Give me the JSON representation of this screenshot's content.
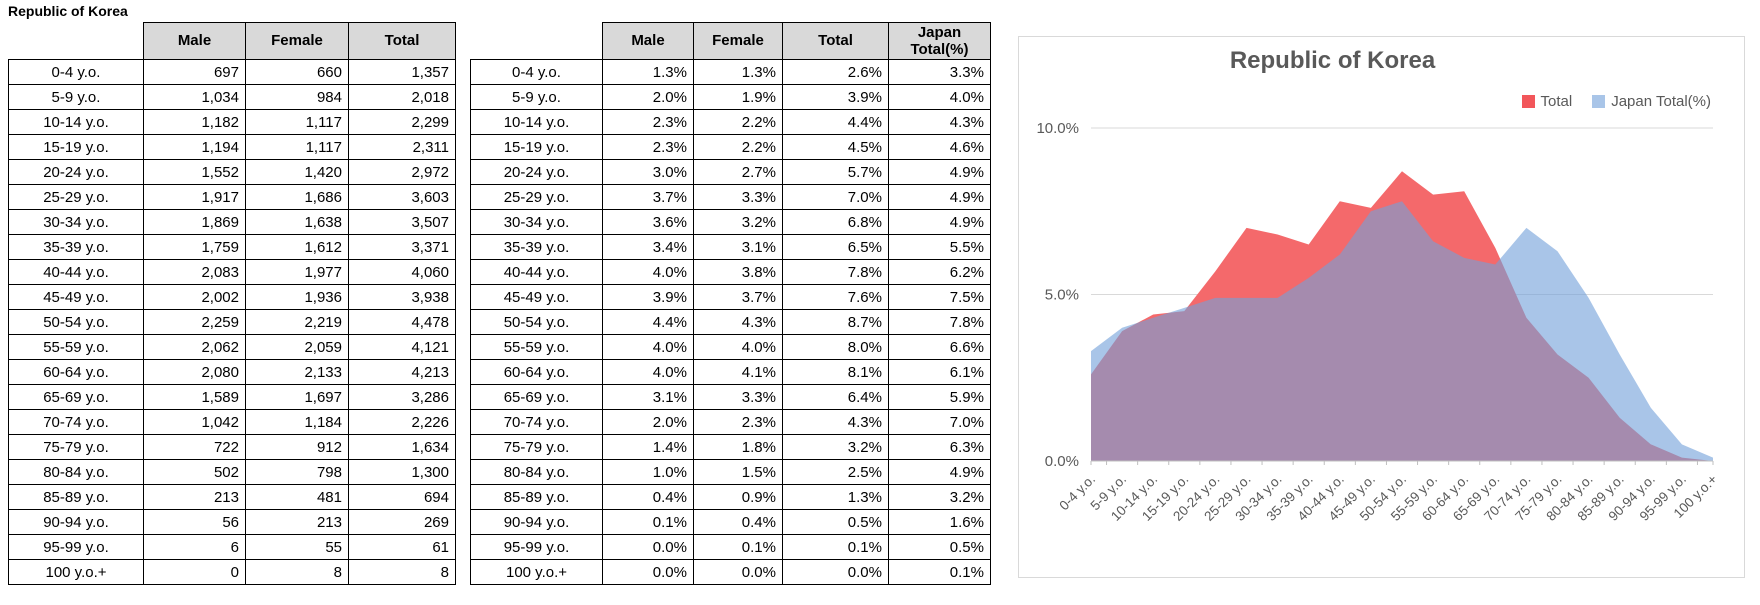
{
  "page_title": "Republic of Korea",
  "age_groups": [
    "0-4 y.o.",
    "5-9 y.o.",
    "10-14 y.o.",
    "15-19 y.o.",
    "20-24 y.o.",
    "25-29 y.o.",
    "30-34 y.o.",
    "35-39 y.o.",
    "40-44 y.o.",
    "45-49 y.o.",
    "50-54 y.o.",
    "55-59 y.o.",
    "60-64 y.o.",
    "65-69 y.o.",
    "70-74 y.o.",
    "75-79 y.o.",
    "80-84 y.o.",
    "85-89 y.o.",
    "90-94 y.o.",
    "95-99 y.o.",
    "100 y.o.+"
  ],
  "counts_table": {
    "headers": [
      "Male",
      "Female",
      "Total"
    ],
    "rows": [
      [
        "697",
        "660",
        "1,357"
      ],
      [
        "1,034",
        "984",
        "2,018"
      ],
      [
        "1,182",
        "1,117",
        "2,299"
      ],
      [
        "1,194",
        "1,117",
        "2,311"
      ],
      [
        "1,552",
        "1,420",
        "2,972"
      ],
      [
        "1,917",
        "1,686",
        "3,603"
      ],
      [
        "1,869",
        "1,638",
        "3,507"
      ],
      [
        "1,759",
        "1,612",
        "3,371"
      ],
      [
        "2,083",
        "1,977",
        "4,060"
      ],
      [
        "2,002",
        "1,936",
        "3,938"
      ],
      [
        "2,259",
        "2,219",
        "4,478"
      ],
      [
        "2,062",
        "2,059",
        "4,121"
      ],
      [
        "2,080",
        "2,133",
        "4,213"
      ],
      [
        "1,589",
        "1,697",
        "3,286"
      ],
      [
        "1,042",
        "1,184",
        "2,226"
      ],
      [
        "722",
        "912",
        "1,634"
      ],
      [
        "502",
        "798",
        "1,300"
      ],
      [
        "213",
        "481",
        "694"
      ],
      [
        "56",
        "213",
        "269"
      ],
      [
        "6",
        "55",
        "61"
      ],
      [
        "0",
        "8",
        "8"
      ]
    ]
  },
  "percent_table": {
    "headers": [
      "Male",
      "Female",
      "Total",
      "Japan\nTotal(%)"
    ],
    "rows": [
      [
        "1.3%",
        "1.3%",
        "2.6%",
        "3.3%"
      ],
      [
        "2.0%",
        "1.9%",
        "3.9%",
        "4.0%"
      ],
      [
        "2.3%",
        "2.2%",
        "4.4%",
        "4.3%"
      ],
      [
        "2.3%",
        "2.2%",
        "4.5%",
        "4.6%"
      ],
      [
        "3.0%",
        "2.7%",
        "5.7%",
        "4.9%"
      ],
      [
        "3.7%",
        "3.3%",
        "7.0%",
        "4.9%"
      ],
      [
        "3.6%",
        "3.2%",
        "6.8%",
        "4.9%"
      ],
      [
        "3.4%",
        "3.1%",
        "6.5%",
        "5.5%"
      ],
      [
        "4.0%",
        "3.8%",
        "7.8%",
        "6.2%"
      ],
      [
        "3.9%",
        "3.7%",
        "7.6%",
        "7.5%"
      ],
      [
        "4.4%",
        "4.3%",
        "8.7%",
        "7.8%"
      ],
      [
        "4.0%",
        "4.0%",
        "8.0%",
        "6.6%"
      ],
      [
        "4.0%",
        "4.1%",
        "8.1%",
        "6.1%"
      ],
      [
        "3.1%",
        "3.3%",
        "6.4%",
        "5.9%"
      ],
      [
        "2.0%",
        "2.3%",
        "4.3%",
        "7.0%"
      ],
      [
        "1.4%",
        "1.8%",
        "3.2%",
        "6.3%"
      ],
      [
        "1.0%",
        "1.5%",
        "2.5%",
        "4.9%"
      ],
      [
        "0.4%",
        "0.9%",
        "1.3%",
        "3.2%"
      ],
      [
        "0.1%",
        "0.4%",
        "0.5%",
        "1.6%"
      ],
      [
        "0.0%",
        "0.1%",
        "0.1%",
        "0.5%"
      ],
      [
        "0.0%",
        "0.0%",
        "0.0%",
        "0.1%"
      ]
    ]
  },
  "chart_data": {
    "type": "area",
    "title": "Republic of Korea",
    "categories": [
      "0-4 y.o.",
      "5-9 y.o.",
      "10-14 y.o.",
      "15-19 y.o.",
      "20-24 y.o.",
      "25-29 y.o.",
      "30-34 y.o.",
      "35-39 y.o.",
      "40-44 y.o.",
      "45-49 y.o.",
      "50-54 y.o.",
      "55-59 y.o.",
      "60-64 y.o.",
      "65-69 y.o.",
      "70-74 y.o.",
      "75-79 y.o.",
      "80-84 y.o.",
      "85-89 y.o.",
      "90-94 y.o.",
      "95-99 y.o.",
      "100 y.o.+"
    ],
    "series": [
      {
        "name": "Total",
        "legend_color": "#F2565A",
        "fill": "#F4696B",
        "fill_opacity": 1,
        "values": [
          2.6,
          3.9,
          4.4,
          4.5,
          5.7,
          7.0,
          6.8,
          6.5,
          7.8,
          7.6,
          8.7,
          8.0,
          8.1,
          6.4,
          4.3,
          3.2,
          2.5,
          1.3,
          0.5,
          0.1,
          0.0
        ]
      },
      {
        "name": "Japan Total(%)",
        "legend_color": "#A9C5E8",
        "fill": "#72A0D9",
        "fill_opacity": 0.61,
        "values": [
          3.3,
          4.0,
          4.3,
          4.6,
          4.9,
          4.9,
          4.9,
          5.5,
          6.2,
          7.5,
          7.8,
          6.6,
          6.1,
          5.9,
          7.0,
          6.3,
          4.9,
          3.2,
          1.6,
          0.5,
          0.1
        ]
      }
    ],
    "ylim": [
      0,
      10
    ],
    "yticks": [
      {
        "value": 0,
        "label": "0.0%"
      },
      {
        "value": 5,
        "label": "5.0%"
      },
      {
        "value": 10,
        "label": "10.0%"
      }
    ],
    "grid": true,
    "legend_position": "top-right",
    "xlabel": "",
    "ylabel": ""
  },
  "colors": {
    "header_bg": "#D9D9D9",
    "table_border": "#000000",
    "gridline": "#D9D9D9",
    "axis_line": "#BFBFBF",
    "chart_text": "#595959"
  }
}
